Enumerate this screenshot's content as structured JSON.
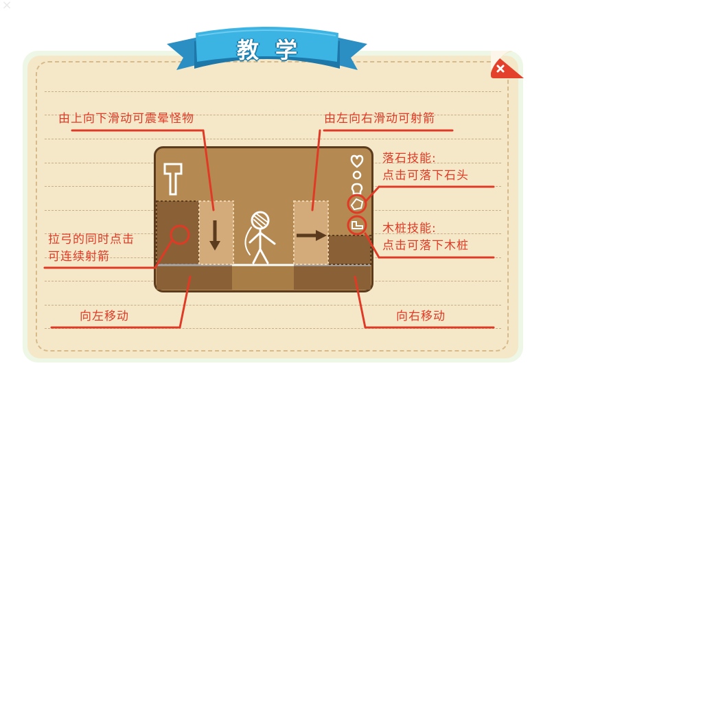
{
  "title": "教学",
  "close_label": "×",
  "labels": {
    "swipe_down": "由上向下滑动可震晕怪物",
    "swipe_right": "由左向右滑动可射箭",
    "rock_skill_title": "落石技能:",
    "rock_skill_desc": "点击可落下石头",
    "stake_skill_title": "木桩技能:",
    "stake_skill_desc": "点击可落下木桩",
    "tap_while_drawing_1": "拉弓的同时点击",
    "tap_while_drawing_2": "可连续射箭",
    "move_left": "向左移动",
    "move_right": "向右移动"
  },
  "game": {
    "side_icons": [
      "heart-icon",
      "ring-icon",
      "skull-icon",
      "rock-skill-icon",
      "stake-skill-icon"
    ],
    "left_icon": "hammer-icon"
  },
  "colors": {
    "accent_red": "#e03a26",
    "ribbon_blue": "#3aa6d8",
    "paper": "#f4e8c9",
    "game_bg": "#b58a52",
    "game_frame": "#5a3b1d"
  }
}
